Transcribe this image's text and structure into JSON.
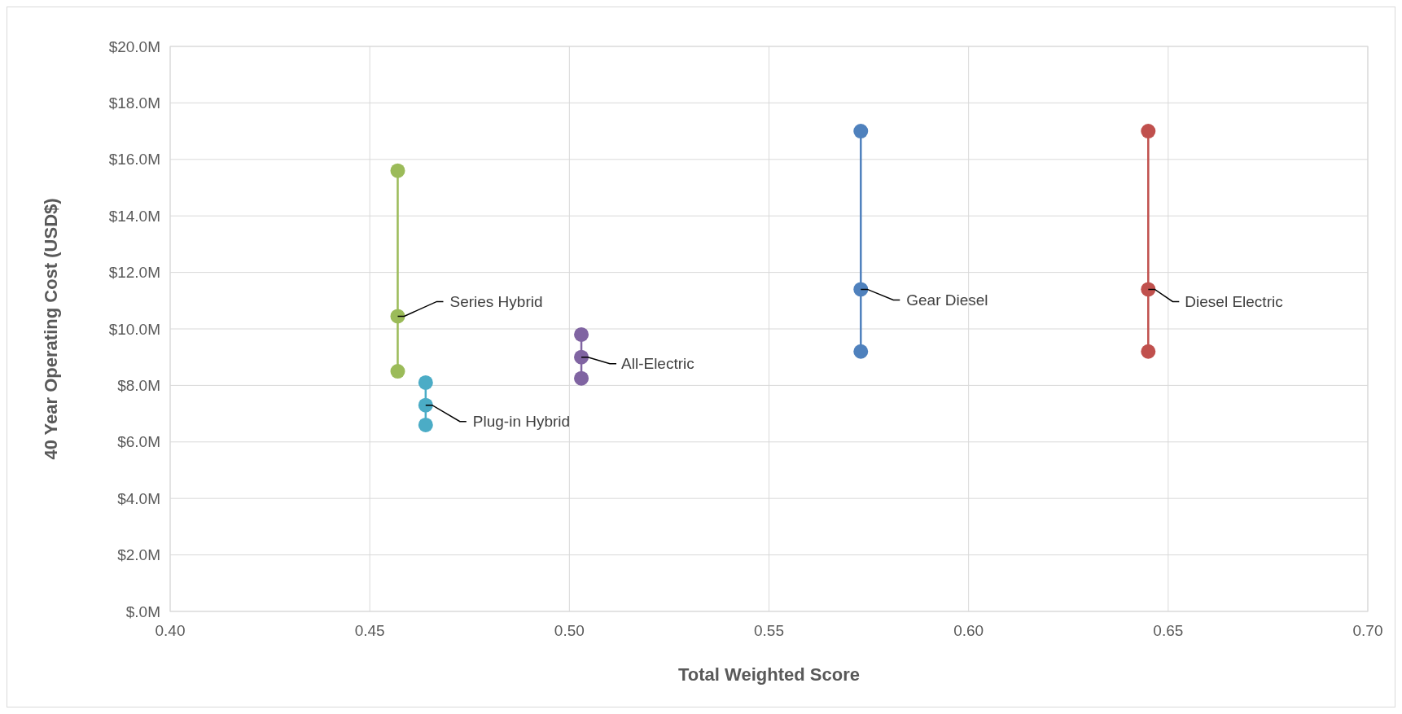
{
  "chart_data": {
    "type": "line",
    "xlabel": "Total Weighted Score",
    "ylabel": "40 Year Operating Cost (USD$)",
    "xlim": [
      0.4,
      0.7
    ],
    "xticks": [
      {
        "value": 0.4,
        "label": "0.40"
      },
      {
        "value": 0.45,
        "label": "0.45"
      },
      {
        "value": 0.5,
        "label": "0.50"
      },
      {
        "value": 0.55,
        "label": "0.55"
      },
      {
        "value": 0.6,
        "label": "0.60"
      },
      {
        "value": 0.65,
        "label": "0.65"
      },
      {
        "value": 0.7,
        "label": "0.70"
      }
    ],
    "ylim": [
      0,
      20
    ],
    "yticks": [
      {
        "value": 0,
        "label": "$.0M"
      },
      {
        "value": 2,
        "label": "$2.0M"
      },
      {
        "value": 4,
        "label": "$4.0M"
      },
      {
        "value": 6,
        "label": "$6.0M"
      },
      {
        "value": 8,
        "label": "$8.0M"
      },
      {
        "value": 10,
        "label": "$10.0M"
      },
      {
        "value": 12,
        "label": "$12.0M"
      },
      {
        "value": 14,
        "label": "$14.0M"
      },
      {
        "value": 16,
        "label": "$16.0M"
      },
      {
        "value": 18,
        "label": "$18.0M"
      },
      {
        "value": 20,
        "label": "$20.0M"
      }
    ],
    "grid": true,
    "marker": "circle",
    "line_style": "solid",
    "series": [
      {
        "color": "#9bbb59",
        "x": [
          0.457,
          0.457,
          0.457
        ],
        "values": [
          15.6,
          10.45,
          8.5
        ]
      },
      {
        "color": "#4bacc6",
        "x": [
          0.464,
          0.464,
          0.464
        ],
        "values": [
          8.1,
          7.3,
          6.6
        ]
      },
      {
        "color": "#8064a2",
        "x": [
          0.503,
          0.503,
          0.503
        ],
        "values": [
          9.8,
          9.0,
          8.25
        ]
      },
      {
        "color": "#4f81bd",
        "x": [
          0.573,
          0.573,
          0.573
        ],
        "values": [
          17.0,
          11.4,
          9.2
        ]
      },
      {
        "color": "#c0504d",
        "x": [
          0.645,
          0.645,
          0.645
        ],
        "values": [
          17.0,
          11.4,
          9.2
        ]
      }
    ],
    "annotations": [
      {
        "text": "Series Hybrid",
        "x": 0.457,
        "y": 10.45
      },
      {
        "text": "Plug-in Hybrid",
        "x": 0.464,
        "y": 7.3
      },
      {
        "text": "All-Electric",
        "x": 0.503,
        "y": 9.0
      },
      {
        "text": "Gear Diesel",
        "x": 0.573,
        "y": 11.4
      },
      {
        "text": "Diesel Electric",
        "x": 0.645,
        "y": 11.4
      }
    ]
  }
}
